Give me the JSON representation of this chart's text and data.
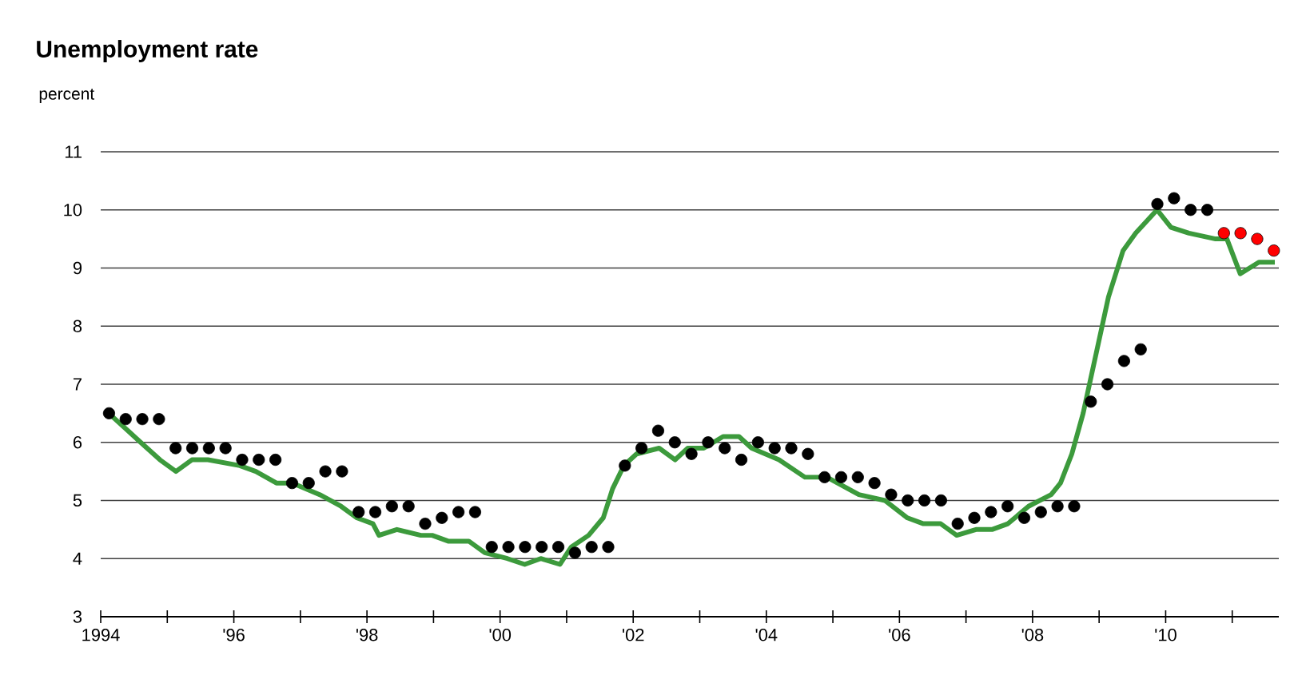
{
  "chart_data": {
    "type": "line",
    "title": "Unemployment rate",
    "ylabel": "percent",
    "xlim": [
      1994,
      2011.7
    ],
    "ylim": [
      3,
      11
    ],
    "yticks": [
      3,
      4,
      5,
      6,
      7,
      8,
      9,
      10,
      11
    ],
    "xticks": [
      {
        "value": 1994,
        "label": "1994"
      },
      {
        "value": 1995,
        "label": null
      },
      {
        "value": 1996,
        "label": "'96"
      },
      {
        "value": 1997,
        "label": null
      },
      {
        "value": 1998,
        "label": "'98"
      },
      {
        "value": 1999,
        "label": null
      },
      {
        "value": 2000,
        "label": "'00"
      },
      {
        "value": 2001,
        "label": null
      },
      {
        "value": 2002,
        "label": "'02"
      },
      {
        "value": 2003,
        "label": null
      },
      {
        "value": 2004,
        "label": "'04"
      },
      {
        "value": 2005,
        "label": null
      },
      {
        "value": 2006,
        "label": "'06"
      },
      {
        "value": 2007,
        "label": null
      },
      {
        "value": 2008,
        "label": "'08"
      },
      {
        "value": 2009,
        "label": null
      },
      {
        "value": 2010,
        "label": "'10"
      },
      {
        "value": 2011,
        "label": null
      }
    ],
    "grid": "y",
    "series": [
      {
        "type": "line",
        "color": "#3c9a3c",
        "x": [
          1994.12,
          1994.41,
          1994.6,
          1994.89,
          1995.13,
          1995.37,
          1995.61,
          1996.09,
          1996.33,
          1996.64,
          1996.88,
          1997.29,
          1997.61,
          1997.85,
          1998.09,
          1998.18,
          1998.45,
          1998.81,
          1998.98,
          1999.22,
          1999.53,
          1999.77,
          2000.11,
          2000.37,
          2000.61,
          2000.9,
          2001.07,
          2001.33,
          2001.55,
          2001.69,
          2001.86,
          2002.05,
          2002.39,
          2002.63,
          2002.82,
          2003.06,
          2003.35,
          2003.59,
          2003.78,
          2004.19,
          2004.58,
          2004.91,
          2005.39,
          2005.78,
          2006.12,
          2006.36,
          2006.62,
          2006.86,
          2007.15,
          2007.39,
          2007.63,
          2007.94,
          2008.28,
          2008.42,
          2008.59,
          2008.76,
          2008.95,
          2009.14,
          2009.36,
          2009.55,
          2009.87,
          2010.08,
          2010.35,
          2010.75,
          2010.92,
          2011.12,
          2011.4,
          2011.64
        ],
        "values": [
          6.5,
          6.2,
          6.0,
          5.7,
          5.5,
          5.7,
          5.7,
          5.6,
          5.5,
          5.3,
          5.3,
          5.1,
          4.9,
          4.7,
          4.6,
          4.4,
          4.5,
          4.4,
          4.4,
          4.3,
          4.3,
          4.1,
          4.0,
          3.9,
          4.0,
          3.9,
          4.2,
          4.4,
          4.7,
          5.2,
          5.6,
          5.8,
          5.9,
          5.7,
          5.9,
          5.9,
          6.1,
          6.1,
          5.9,
          5.7,
          5.4,
          5.4,
          5.1,
          5.0,
          4.7,
          4.6,
          4.6,
          4.4,
          4.5,
          4.5,
          4.6,
          4.9,
          5.1,
          5.3,
          5.8,
          6.5,
          7.5,
          8.5,
          9.3,
          9.6,
          10.0,
          9.7,
          9.6,
          9.5,
          9.5,
          8.9,
          9.1,
          9.1
        ]
      },
      {
        "type": "scatter",
        "marker": "circle",
        "color": "#000000",
        "x": [
          1994.125,
          1994.375,
          1994.625,
          1994.875,
          1995.125,
          1995.375,
          1995.625,
          1995.875,
          1996.125,
          1996.375,
          1996.625,
          1996.875,
          1997.125,
          1997.375,
          1997.625,
          1997.875,
          1998.125,
          1998.375,
          1998.625,
          1998.875,
          1999.125,
          1999.375,
          1999.625,
          1999.875,
          2000.125,
          2000.375,
          2000.625,
          2000.875,
          2001.125,
          2001.375,
          2001.625,
          2001.875,
          2002.125,
          2002.375,
          2002.625,
          2002.875,
          2003.125,
          2003.375,
          2003.625,
          2003.875,
          2004.125,
          2004.375,
          2004.625,
          2004.875,
          2005.125,
          2005.375,
          2005.625,
          2005.875,
          2006.125,
          2006.375,
          2006.625,
          2006.875,
          2007.125,
          2007.375,
          2007.625,
          2007.875,
          2008.125,
          2008.375,
          2008.625,
          2008.875,
          2009.125,
          2009.375,
          2009.625,
          2009.875,
          2010.125,
          2010.375,
          2010.625
        ],
        "values": [
          6.5,
          6.4,
          6.4,
          6.4,
          5.9,
          5.9,
          5.9,
          5.9,
          5.7,
          5.7,
          5.7,
          5.3,
          5.3,
          5.5,
          5.5,
          4.8,
          4.8,
          4.9,
          4.9,
          4.6,
          4.7,
          4.8,
          4.8,
          4.2,
          4.2,
          4.2,
          4.2,
          4.2,
          4.1,
          4.2,
          4.2,
          5.6,
          5.9,
          6.2,
          6.0,
          5.8,
          6.0,
          5.9,
          5.7,
          6.0,
          5.9,
          5.9,
          5.8,
          5.4,
          5.4,
          5.4,
          5.3,
          5.1,
          5.0,
          5.0,
          5.0,
          4.6,
          4.7,
          4.8,
          4.9,
          4.7,
          4.8,
          4.9,
          4.9,
          6.7,
          7.0,
          7.4,
          7.6,
          10.1,
          10.2,
          10.0,
          10.0
        ]
      },
      {
        "type": "scatter",
        "marker": "circle",
        "color": "#ff0000",
        "x": [
          2010.875,
          2011.125,
          2011.375,
          2011.625
        ],
        "values": [
          9.6,
          9.6,
          9.5,
          9.3
        ]
      }
    ]
  }
}
